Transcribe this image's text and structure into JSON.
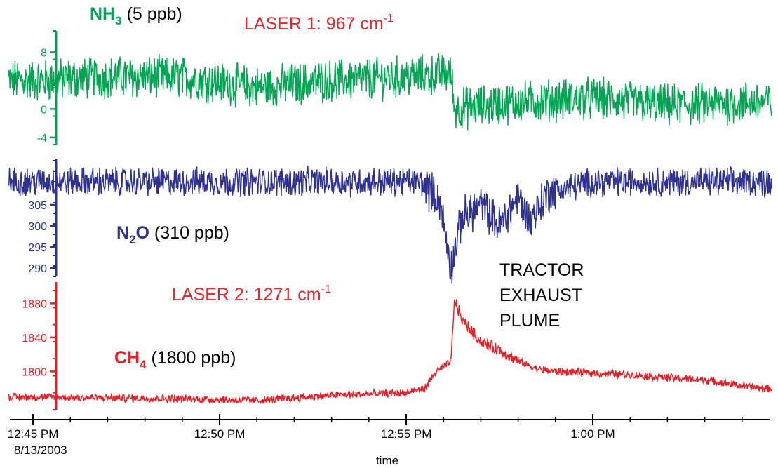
{
  "chart_data": {
    "type": "line",
    "title": "",
    "xlabel": "time",
    "x_axis": {
      "ticks": [
        {
          "value": "12:45 PM",
          "sub": "8/13/2003"
        },
        {
          "value": "12:50 PM",
          "sub": ""
        },
        {
          "value": "12:55 PM",
          "sub": ""
        },
        {
          "value": "1:00 PM",
          "sub": ""
        }
      ],
      "range_minutes": [
        -0.5,
        19.6
      ]
    },
    "annotations": {
      "laser1": {
        "text": "LASER 1: 967 cm",
        "sup": "-1",
        "color": "#e8252c"
      },
      "laser2": {
        "text": "LASER 2: 1271 cm",
        "sup": "-1",
        "color": "#e8252c"
      },
      "plume": [
        "TRACTOR",
        "EXHAUST",
        "PLUME"
      ]
    },
    "series": [
      {
        "name": "NH3",
        "name_main": "NH",
        "name_sub": "3",
        "name_tail": "",
        "unit_label": " (5 ppb)",
        "color": "#00a651",
        "y_ticks": [
          "8",
          "0",
          "-4"
        ],
        "y_tick_values": [
          8,
          0,
          -4
        ],
        "ylim": [
          -5,
          11
        ],
        "baseline_before": 4.5,
        "baseline_after": 1.0,
        "noise": 2.6,
        "event_minute": 11.2,
        "points_min_value": [
          [
            0,
            4
          ],
          [
            2,
            4.5
          ],
          [
            4,
            4.5
          ],
          [
            6,
            3
          ],
          [
            8,
            4
          ],
          [
            10,
            4.5
          ],
          [
            11.2,
            5
          ],
          [
            11.3,
            0
          ],
          [
            13,
            1
          ],
          [
            15,
            1.5
          ],
          [
            17,
            0.5
          ],
          [
            19.5,
            1
          ]
        ]
      },
      {
        "name": "N2O",
        "name_main": "N",
        "name_sub": "2",
        "name_tail": "O",
        "unit_label": " (310 ppb)",
        "color": "#2e3192",
        "y_ticks": [
          "305",
          "300",
          "295",
          "290"
        ],
        "y_tick_values": [
          305,
          300,
          295,
          290
        ],
        "ylim": [
          288,
          316
        ],
        "baseline": 310.5,
        "noise": 3,
        "points_min_value": [
          [
            0,
            310.5
          ],
          [
            10.4,
            310.5
          ],
          [
            10.9,
            306
          ],
          [
            11.2,
            290
          ],
          [
            11.5,
            302
          ],
          [
            12.0,
            305
          ],
          [
            12.5,
            300
          ],
          [
            13.0,
            307
          ],
          [
            13.3,
            301
          ],
          [
            13.8,
            308
          ],
          [
            15,
            310.5
          ],
          [
            19.5,
            310.5
          ]
        ]
      },
      {
        "name": "CH4",
        "name_main": "CH",
        "name_sub": "4",
        "name_tail": "",
        "unit_label": " (1800 ppb)",
        "color": "#ed1c24",
        "y_ticks": [
          "1880",
          "1840",
          "1800"
        ],
        "y_tick_values": [
          1880,
          1840,
          1800
        ],
        "ylim": [
          1755,
          1905
        ],
        "noise": 4,
        "points_min_value": [
          [
            0,
            1770
          ],
          [
            4,
            1768
          ],
          [
            6,
            1766
          ],
          [
            8,
            1772
          ],
          [
            10,
            1775
          ],
          [
            10.5,
            1780
          ],
          [
            10.8,
            1800
          ],
          [
            11.0,
            1805
          ],
          [
            11.2,
            1812
          ],
          [
            11.3,
            1885
          ],
          [
            11.5,
            1860
          ],
          [
            12,
            1835
          ],
          [
            12.5,
            1825
          ],
          [
            13,
            1812
          ],
          [
            13.5,
            1803
          ],
          [
            14,
            1800
          ],
          [
            16,
            1796
          ],
          [
            18,
            1790
          ],
          [
            19.5,
            1780
          ]
        ]
      }
    ]
  }
}
